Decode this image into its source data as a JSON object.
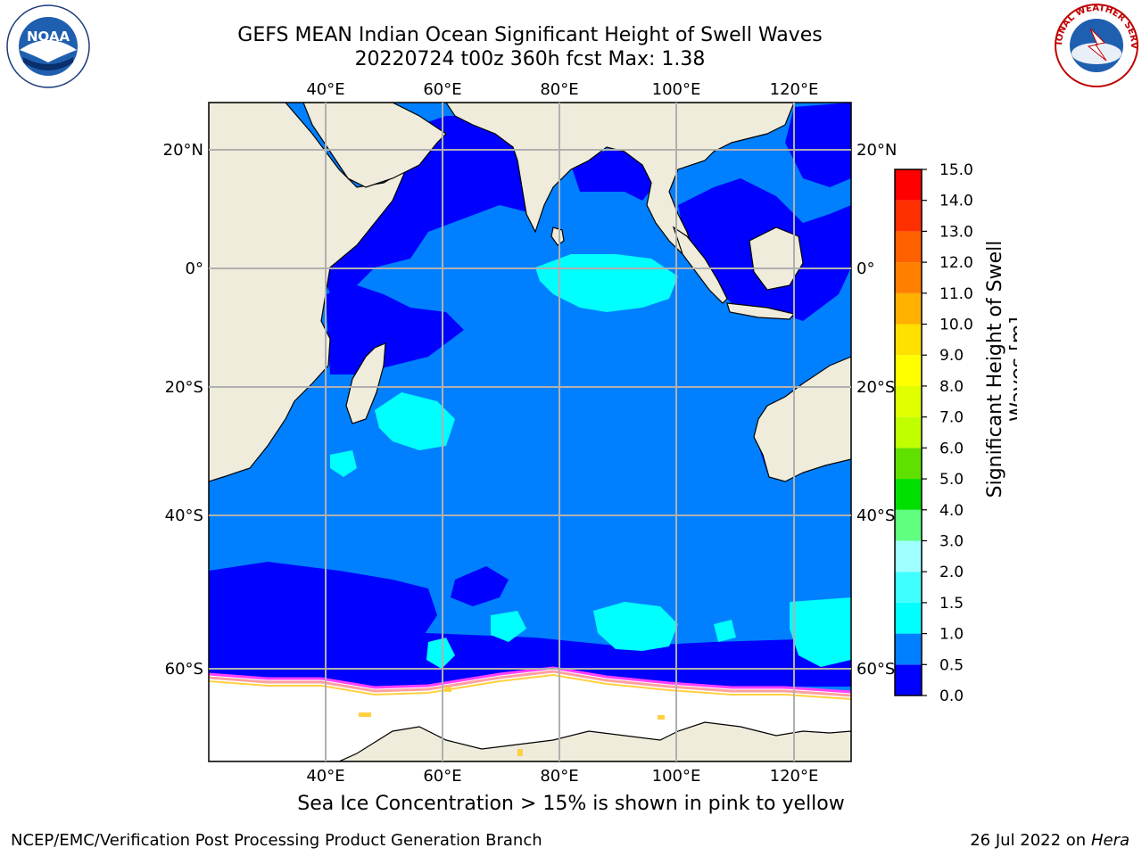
{
  "header": {
    "title_line1": "GEFS MEAN Indian Ocean Significant Height of Swell Waves",
    "title_line2": "20220724 t00z 360h fcst   Max: 1.38"
  },
  "logos": {
    "left": {
      "name": "noaa-logo",
      "text": "NOAA"
    },
    "right": {
      "name": "nws-logo",
      "text": "NATIONAL WEATHER SERVICE"
    }
  },
  "axes": {
    "lon_labels": [
      "40°E",
      "60°E",
      "80°E",
      "100°E",
      "120°E"
    ],
    "lat_labels": [
      "20°N",
      "0°",
      "20°S",
      "40°S",
      "60°S"
    ]
  },
  "colorbar": {
    "title_line1": "Significant Height of Swell",
    "title_line2": "Waves [m]",
    "ticks": [
      "0.0",
      "0.5",
      "1.0",
      "1.5",
      "2.0",
      "3.0",
      "4.0",
      "5.0",
      "6.0",
      "7.0",
      "8.0",
      "9.0",
      "10.0",
      "11.0",
      "12.0",
      "13.0",
      "14.0",
      "15.0"
    ],
    "colors": [
      "#0000ff",
      "#0080ff",
      "#00ffff",
      "#40ffff",
      "#a0ffff",
      "#60ff80",
      "#00e000",
      "#60e000",
      "#c0ff00",
      "#e0ff00",
      "#ffff00",
      "#ffe000",
      "#ffb000",
      "#ff8000",
      "#ff6000",
      "#ff3000",
      "#ff0000"
    ]
  },
  "colors": {
    "land": "#efecdc",
    "ice": "#ffffff",
    "ocean_low": "#0000ff",
    "ocean_mid": "#0080ff",
    "ocean_high": "#00ffff",
    "ice_edge": [
      "#ff40ff",
      "#ffa0a0",
      "#ffd040"
    ]
  },
  "caption": "Sea Ice Concentration > 15% is shown in pink to yellow",
  "footer": {
    "left": "NCEP/EMC/Verification Post Processing Product Generation Branch",
    "right_date": "26 Jul 2022 on ",
    "right_host": "Hera"
  }
}
